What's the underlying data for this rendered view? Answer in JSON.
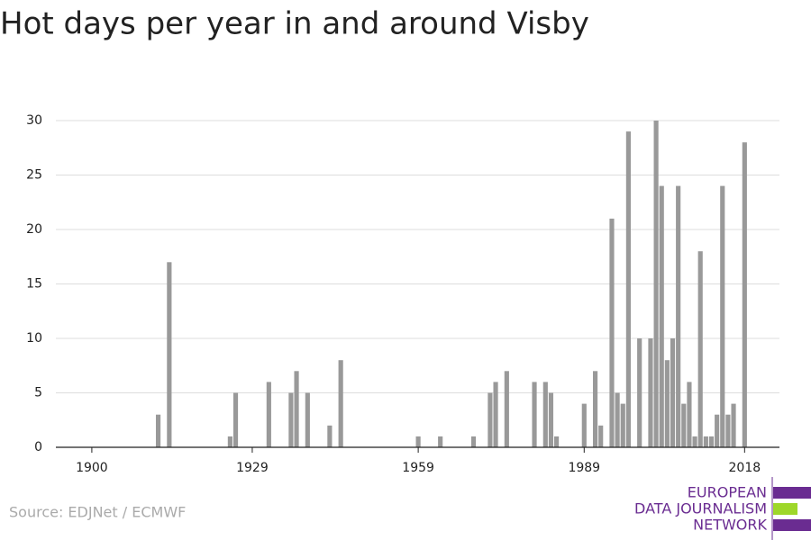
{
  "chart_data": {
    "type": "bar",
    "title": "Hot days per year in and around Visby",
    "source": "Source: EDJNet / ECMWF",
    "logo": [
      "EUROPEAN",
      "DATA JOURNALISM",
      "NETWORK"
    ],
    "x": [
      1912,
      1914,
      1925,
      1926,
      1932,
      1936,
      1937,
      1939,
      1943,
      1945,
      1959,
      1963,
      1969,
      1972,
      1973,
      1975,
      1980,
      1982,
      1983,
      1984,
      1989,
      1991,
      1992,
      1994,
      1995,
      1996,
      1997,
      1999,
      2001,
      2002,
      2003,
      2004,
      2005,
      2006,
      2007,
      2008,
      2009,
      2010,
      2011,
      2012,
      2013,
      2014,
      2015,
      2016,
      2018
    ],
    "values": [
      3,
      17,
      1,
      5,
      6,
      5,
      7,
      5,
      2,
      8,
      1,
      1,
      1,
      5,
      6,
      7,
      6,
      6,
      5,
      1,
      4,
      7,
      2,
      21,
      5,
      4,
      29,
      10,
      10,
      30,
      24,
      8,
      10,
      24,
      4,
      6,
      1,
      18,
      1,
      1,
      3,
      24,
      3,
      4,
      28
    ],
    "color": "#999999",
    "xlim": [
      1893.5,
      2024.3
    ],
    "xticks": [
      1900,
      1929,
      1959,
      1989,
      2018
    ],
    "ylim": [
      0,
      30
    ],
    "yticks": [
      0,
      5,
      10,
      15,
      20,
      25,
      30
    ],
    "grid": true
  }
}
